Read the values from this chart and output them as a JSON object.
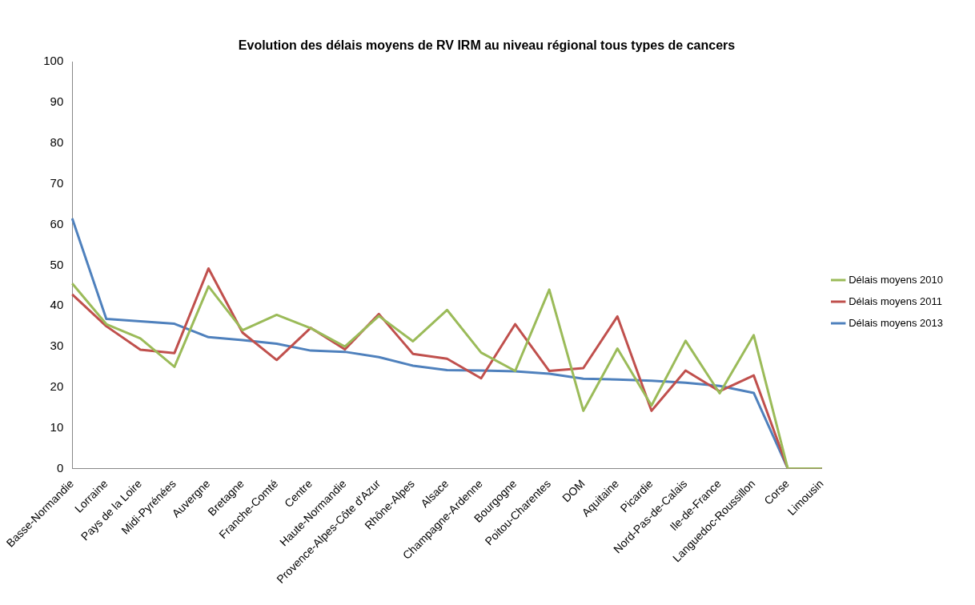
{
  "chart_data": {
    "type": "line",
    "title": "Evolution des délais moyens de RV IRM au niveau régional tous types de cancers",
    "categories": [
      "Basse-Normandie",
      "Lorraine",
      "Pays de la Loire",
      "Midi-Pyrénées",
      "Auvergne",
      "Bretagne",
      "Franche-Comté",
      "Centre",
      "Haute-Normandie",
      "Provence-Alpes-Côte d'Azur",
      "Rhône-Alpes",
      "Alsace",
      "Champagne-Ardenne",
      "Bourgogne",
      "Poitou-Charentes",
      "DOM",
      "Aquitaine",
      "Picardie",
      "Nord-Pas-de-Calais",
      "Ile-de-France",
      "Languedoc-Roussillon",
      "Corse",
      "Limousin"
    ],
    "series": [
      {
        "name": "Délais moyens 2010",
        "color": "#9bbb59",
        "values": [
          45.5,
          35.5,
          32,
          25,
          44.8,
          34,
          37.8,
          34.5,
          30,
          37.5,
          31.3,
          39,
          28.5,
          24,
          44,
          14.2,
          29.5,
          15.5,
          31.4,
          18.5,
          32.8,
          0,
          0
        ]
      },
      {
        "name": "Délais moyens 2011",
        "color": "#c0504d",
        "values": [
          42.8,
          35,
          29.2,
          28.4,
          49.2,
          33.4,
          26.7,
          34.6,
          29.3,
          38,
          28.2,
          27,
          22.2,
          35.5,
          24,
          24.7,
          37.4,
          14.2,
          24.1,
          19,
          22.9,
          0,
          0
        ]
      },
      {
        "name": "Délais moyens 2013",
        "color": "#4f81bd",
        "values": [
          61.5,
          36.8,
          36.2,
          35.6,
          32.3,
          31.6,
          30.7,
          29,
          28.7,
          27.4,
          25.3,
          24.2,
          24.1,
          23.9,
          23.3,
          22.1,
          21.9,
          21.6,
          21.1,
          20.3,
          18.6,
          0,
          0
        ]
      }
    ],
    "ylim": [
      0,
      100
    ],
    "yticks": [
      0,
      10,
      20,
      30,
      40,
      50,
      60,
      70,
      80,
      90,
      100
    ],
    "grid": false,
    "legend": "right",
    "marker": "none",
    "line_style": "solid"
  }
}
